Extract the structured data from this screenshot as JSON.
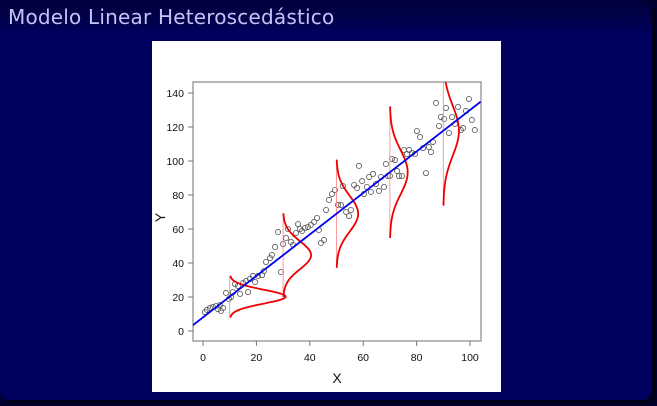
{
  "slide": {
    "title": "Modelo Linear Heteroscedástico"
  },
  "colors": {
    "background": "#00005f",
    "title_text": "#c4c4f4",
    "regression_line": "#0000ee",
    "density_curves": "#ee0000",
    "density_baselines": "#ff8080",
    "points": "#555555"
  },
  "chart_data": {
    "type": "scatter",
    "title": "",
    "xlabel": "X",
    "ylabel": "Y",
    "xlim": [
      -4,
      104
    ],
    "ylim": [
      -6,
      146
    ],
    "xticks": [
      0,
      20,
      40,
      60,
      80,
      100
    ],
    "yticks": [
      0,
      20,
      40,
      60,
      80,
      100,
      120,
      140
    ],
    "grid": false,
    "legend": null,
    "regression_line": {
      "intercept": 8,
      "slope": 1.22,
      "color": "blue"
    },
    "density_curves": [
      {
        "x": 10,
        "mean": 20.2,
        "sd": 4.1,
        "color": "red"
      },
      {
        "x": 30,
        "mean": 44.6,
        "sd": 8.2,
        "color": "red"
      },
      {
        "x": 50,
        "mean": 69.0,
        "sd": 10.6,
        "color": "red"
      },
      {
        "x": 70,
        "mean": 93.4,
        "sd": 12.9,
        "color": "red"
      },
      {
        "x": 90,
        "mean": 117.8,
        "sd": 14.7,
        "color": "red"
      }
    ],
    "points": [
      [
        0.7,
        11.2
      ],
      [
        1.5,
        12.4
      ],
      [
        2.6,
        13.5
      ],
      [
        3.7,
        14.1
      ],
      [
        4.9,
        14.7
      ],
      [
        5.6,
        12.9
      ],
      [
        6.4,
        15.3
      ],
      [
        7.5,
        13.5
      ],
      [
        6.7,
        11.8
      ],
      [
        8.6,
        22.4
      ],
      [
        9.7,
        18.8
      ],
      [
        10.5,
        20.0
      ],
      [
        11.2,
        22.9
      ],
      [
        12.0,
        27.6
      ],
      [
        13.1,
        26.5
      ],
      [
        13.9,
        21.8
      ],
      [
        15.0,
        28.2
      ],
      [
        16.1,
        29.4
      ],
      [
        16.9,
        22.9
      ],
      [
        17.6,
        30.6
      ],
      [
        18.7,
        32.4
      ],
      [
        19.5,
        28.8
      ],
      [
        20.6,
        32.4
      ],
      [
        22.1,
        32.9
      ],
      [
        22.8,
        35.3
      ],
      [
        23.6,
        40.6
      ],
      [
        25.1,
        42.9
      ],
      [
        25.8,
        44.7
      ],
      [
        27.0,
        49.4
      ],
      [
        28.1,
        58.2
      ],
      [
        29.2,
        34.7
      ],
      [
        30.0,
        51.2
      ],
      [
        31.1,
        54.7
      ],
      [
        31.8,
        60.0
      ],
      [
        32.9,
        52.4
      ],
      [
        33.7,
        50.6
      ],
      [
        34.8,
        57.6
      ],
      [
        35.6,
        62.9
      ],
      [
        36.3,
        60.0
      ],
      [
        37.1,
        58.8
      ],
      [
        38.2,
        60.6
      ],
      [
        39.3,
        61.2
      ],
      [
        40.4,
        62.4
      ],
      [
        41.6,
        64.1
      ],
      [
        42.7,
        66.5
      ],
      [
        43.4,
        59.4
      ],
      [
        44.2,
        51.8
      ],
      [
        45.3,
        53.5
      ],
      [
        46.1,
        71.2
      ],
      [
        47.2,
        77.1
      ],
      [
        48.3,
        80.6
      ],
      [
        49.4,
        82.9
      ],
      [
        50.6,
        74.1
      ],
      [
        51.7,
        74.1
      ],
      [
        52.4,
        85.3
      ],
      [
        53.6,
        70.0
      ],
      [
        54.7,
        67.6
      ],
      [
        55.4,
        71.2
      ],
      [
        56.6,
        85.9
      ],
      [
        57.7,
        84.1
      ],
      [
        58.4,
        97.1
      ],
      [
        59.6,
        88.2
      ],
      [
        60.3,
        80.6
      ],
      [
        61.4,
        84.7
      ],
      [
        62.2,
        90.6
      ],
      [
        62.9,
        81.8
      ],
      [
        63.7,
        92.4
      ],
      [
        64.8,
        86.5
      ],
      [
        65.9,
        82.4
      ],
      [
        66.7,
        90.6
      ],
      [
        67.8,
        84.7
      ],
      [
        68.5,
        98.2
      ],
      [
        69.3,
        91.2
      ],
      [
        70.0,
        91.2
      ],
      [
        70.8,
        101.2
      ],
      [
        71.9,
        100.6
      ],
      [
        72.7,
        94.1
      ],
      [
        73.4,
        91.2
      ],
      [
        74.5,
        91.2
      ],
      [
        75.3,
        106.5
      ],
      [
        76.4,
        104.1
      ],
      [
        77.2,
        106.5
      ],
      [
        78.3,
        104.7
      ],
      [
        79.4,
        104.1
      ],
      [
        80.1,
        117.6
      ],
      [
        81.3,
        114.1
      ],
      [
        82.4,
        107.6
      ],
      [
        83.5,
        92.9
      ],
      [
        84.6,
        108.2
      ],
      [
        85.4,
        105.3
      ],
      [
        86.1,
        111.2
      ],
      [
        87.3,
        134.1
      ],
      [
        88.4,
        120.6
      ],
      [
        89.1,
        125.9
      ],
      [
        90.3,
        124.7
      ],
      [
        91.0,
        131.2
      ],
      [
        92.1,
        116.5
      ],
      [
        93.3,
        125.9
      ],
      [
        94.4,
        121.8
      ],
      [
        95.5,
        131.8
      ],
      [
        96.6,
        118.2
      ],
      [
        97.4,
        119.4
      ],
      [
        98.5,
        129.4
      ],
      [
        99.6,
        136.5
      ],
      [
        100.7,
        124.1
      ],
      [
        101.8,
        118.2
      ]
    ]
  }
}
